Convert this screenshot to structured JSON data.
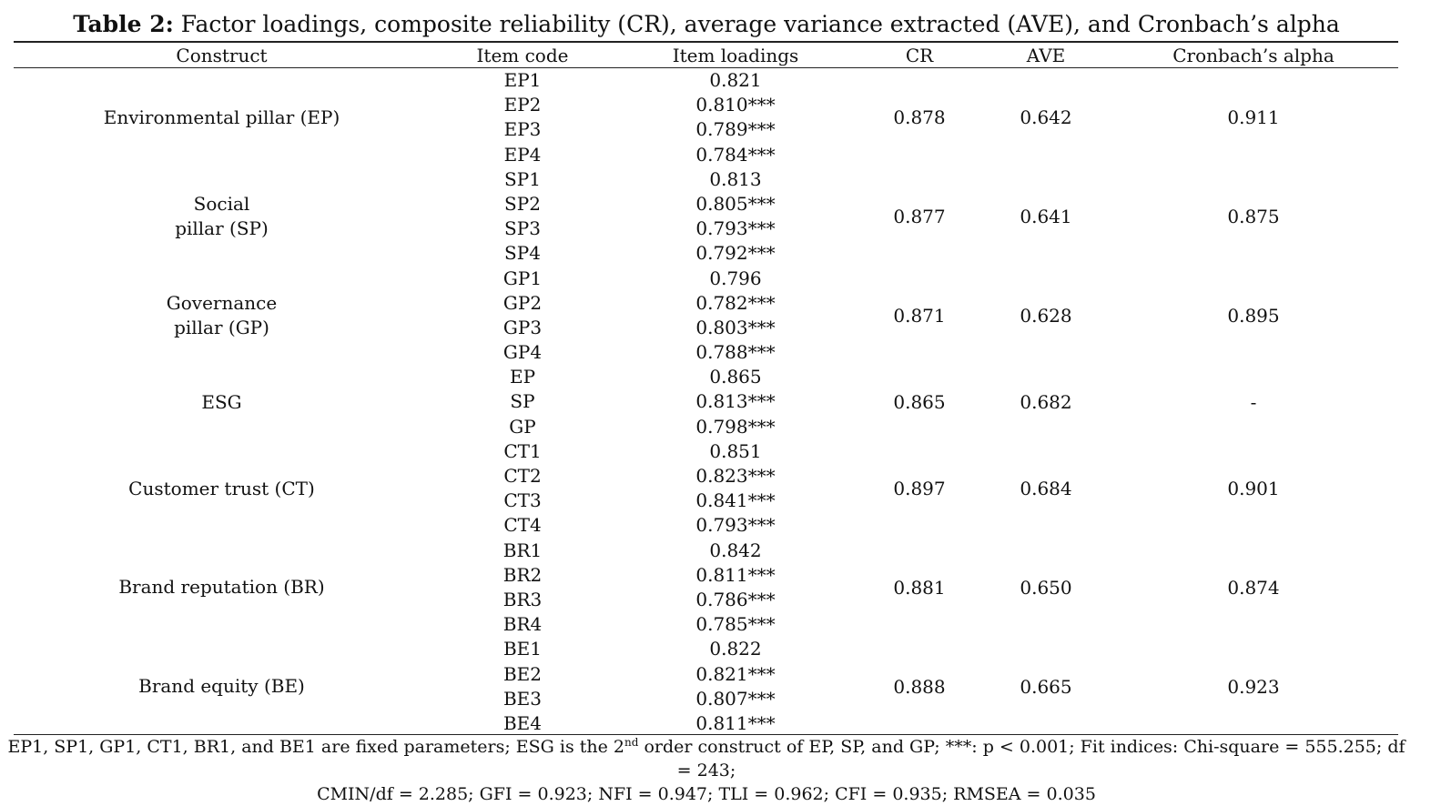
{
  "caption": {
    "label": "Table 2:",
    "text": " Factor loadings, composite reliability (CR), average variance extracted (AVE), and Cronbach’s alpha"
  },
  "headers": {
    "construct": "Construct",
    "item_code": "Item code",
    "item_loadings": "Item loadings",
    "cr": "CR",
    "ave": "AVE",
    "alpha": "Cronbach’s alpha"
  },
  "groups": [
    {
      "construct_lines": [
        "Environmental pillar (EP)"
      ],
      "cr": "0.878",
      "ave": "0.642",
      "alpha": "0.911",
      "items": [
        {
          "code": "EP1",
          "loading": "0.821"
        },
        {
          "code": "EP2",
          "loading": "0.810***"
        },
        {
          "code": "EP3",
          "loading": "0.789***"
        },
        {
          "code": "EP4",
          "loading": "0.784***"
        }
      ]
    },
    {
      "construct_lines": [
        "Social",
        "pillar (SP)"
      ],
      "cr": "0.877",
      "ave": "0.641",
      "alpha": "0.875",
      "items": [
        {
          "code": "SP1",
          "loading": "0.813"
        },
        {
          "code": "SP2",
          "loading": "0.805***"
        },
        {
          "code": "SP3",
          "loading": "0.793***"
        },
        {
          "code": "SP4",
          "loading": "0.792***"
        }
      ]
    },
    {
      "construct_lines": [
        "Governance",
        "pillar (GP)"
      ],
      "cr": "0.871",
      "ave": "0.628",
      "alpha": "0.895",
      "items": [
        {
          "code": "GP1",
          "loading": "0.796"
        },
        {
          "code": "GP2",
          "loading": "0.782***"
        },
        {
          "code": "GP3",
          "loading": "0.803***"
        },
        {
          "code": "GP4",
          "loading": "0.788***"
        }
      ]
    },
    {
      "construct_lines": [
        "ESG"
      ],
      "cr": "0.865",
      "ave": "0.682",
      "alpha": "-",
      "items": [
        {
          "code": "EP",
          "loading": "0.865"
        },
        {
          "code": "SP",
          "loading": "0.813***"
        },
        {
          "code": "GP",
          "loading": "0.798***"
        }
      ]
    },
    {
      "construct_lines": [
        "Customer trust (CT)"
      ],
      "cr": "0.897",
      "ave": "0.684",
      "alpha": "0.901",
      "items": [
        {
          "code": "CT1",
          "loading": "0.851"
        },
        {
          "code": "CT2",
          "loading": "0.823***"
        },
        {
          "code": "CT3",
          "loading": "0.841***"
        },
        {
          "code": "CT4",
          "loading": "0.793***"
        }
      ]
    },
    {
      "construct_lines": [
        "Brand reputation (BR)"
      ],
      "cr": "0.881",
      "ave": "0.650",
      "alpha": "0.874",
      "items": [
        {
          "code": "BR1",
          "loading": "0.842"
        },
        {
          "code": "BR2",
          "loading": "0.811***"
        },
        {
          "code": "BR3",
          "loading": "0.786***"
        },
        {
          "code": "BR4",
          "loading": "0.785***"
        }
      ]
    },
    {
      "construct_lines": [
        "Brand equity (BE)"
      ],
      "cr": "0.888",
      "ave": "0.665",
      "alpha": "0.923",
      "items": [
        {
          "code": "BE1",
          "loading": "0.822"
        },
        {
          "code": "BE2",
          "loading": "0.821***"
        },
        {
          "code": "BE3",
          "loading": "0.807***"
        },
        {
          "code": "BE4",
          "loading": "0.811***"
        }
      ]
    }
  ],
  "footnote": {
    "part1": "EP1, SP1, GP1, CT1, BR1, and BE1 are fixed parameters; ESG is the 2",
    "sup": "nd",
    "part2": " order construct of EP, SP, and GP; ***: p < 0.001; Fit indices: Chi-square = 555.255; df = 243;",
    "line2": "CMIN/df = 2.285; GFI = 0.923; NFI = 0.947; TLI = 0.962; CFI = 0.935; RMSEA = 0.035"
  }
}
